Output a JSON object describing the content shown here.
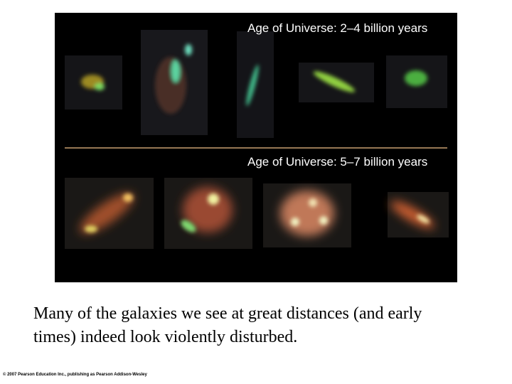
{
  "figure": {
    "labels": [
      "Age of Universe: 2–4 billion years",
      "Age of Universe: 5–7 billion years"
    ]
  },
  "caption": [
    "Many of the galaxies we see at great distances (and early",
    "times) indeed look violently disturbed."
  ],
  "copyright": "© 2007 Pearson Education Inc., publishing as Pearson Addison-Wesley"
}
